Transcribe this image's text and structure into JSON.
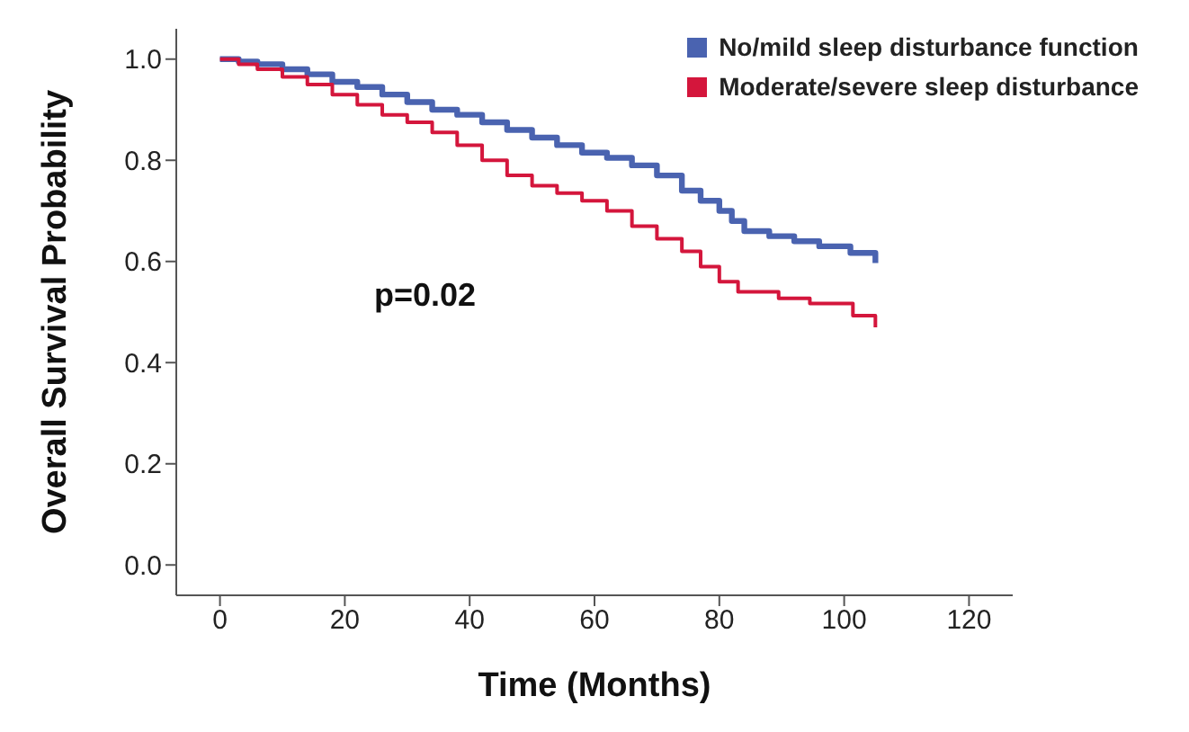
{
  "chart_data": {
    "type": "step",
    "xlabel": "Time (Months)",
    "ylabel": "Overall Survival Probability",
    "xlim": [
      -7,
      127
    ],
    "xticks": [
      0,
      20,
      40,
      60,
      80,
      100,
      120
    ],
    "ylim": [
      -0.06,
      1.06
    ],
    "yticks": [
      {
        "value": 0,
        "label": "0.0"
      },
      {
        "value": 0.2,
        "label": "0.2"
      },
      {
        "value": 0.4,
        "label": "0.4"
      },
      {
        "value": 0.6,
        "label": "0.6"
      },
      {
        "value": 0.8,
        "label": "0.8"
      },
      {
        "value": 1,
        "label": "1.0"
      }
    ],
    "grid": false,
    "legend": "top right",
    "marker": "none",
    "line_style": "solid",
    "annotations": [
      "p=0.02"
    ],
    "series": [
      {
        "name": "No/mild sleep disturbance function",
        "color": "#4a63b0",
        "x": [
          0,
          3,
          6,
          10,
          14,
          18,
          22,
          26,
          30,
          34,
          38,
          42,
          46,
          50,
          54,
          58,
          62,
          66,
          70,
          74,
          77,
          80,
          82,
          84,
          88,
          92,
          96,
          101,
          105
        ],
        "values": [
          1,
          0.995,
          0.99,
          0.98,
          0.97,
          0.955,
          0.945,
          0.93,
          0.915,
          0.9,
          0.89,
          0.875,
          0.86,
          0.845,
          0.83,
          0.815,
          0.805,
          0.79,
          0.77,
          0.74,
          0.72,
          0.7,
          0.68,
          0.66,
          0.65,
          0.64,
          0.63,
          0.617,
          0.597
        ]
      },
      {
        "name": "Moderate/severe sleep disturbance",
        "color": "#d4163c",
        "x": [
          0,
          3,
          6,
          10,
          14,
          18,
          22,
          26,
          30,
          34,
          38,
          42,
          46,
          50,
          54,
          58,
          62,
          66,
          70,
          74,
          77,
          80,
          83,
          89.5,
          94.5,
          101.4,
          105
        ],
        "values": [
          1,
          0.99,
          0.98,
          0.965,
          0.95,
          0.93,
          0.91,
          0.89,
          0.875,
          0.855,
          0.83,
          0.8,
          0.77,
          0.75,
          0.735,
          0.72,
          0.7,
          0.67,
          0.645,
          0.62,
          0.59,
          0.56,
          0.54,
          0.527,
          0.517,
          0.493,
          0.47
        ]
      }
    ]
  }
}
